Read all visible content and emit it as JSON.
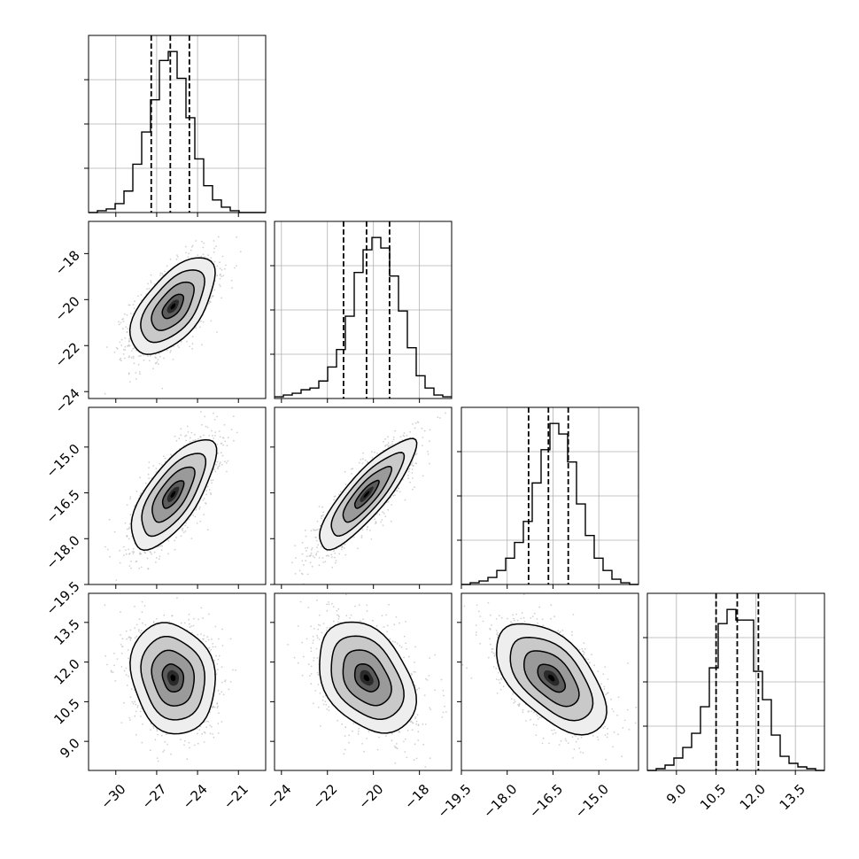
{
  "chart_data": {
    "type": "corner",
    "grid": true,
    "parameters": [
      {
        "index": 0,
        "range": [
          -32.0,
          -19.0
        ],
        "ticks": [
          -30,
          -27,
          -24,
          -21
        ],
        "tick_labels": [
          "−30",
          "−27",
          "−24",
          "−21"
        ],
        "quantiles": [
          -27.4,
          -26.0,
          -24.6
        ]
      },
      {
        "index": 1,
        "range": [
          -24.3,
          -16.6
        ],
        "ticks": [
          -24,
          -22,
          -20,
          -18
        ],
        "tick_labels": [
          "−24",
          "−22",
          "−20",
          "−18"
        ],
        "quantiles": [
          -21.3,
          -20.3,
          -19.3
        ]
      },
      {
        "index": 2,
        "range": [
          -19.5,
          -13.7
        ],
        "ticks": [
          -19.5,
          -18.0,
          -16.5,
          -15.0
        ],
        "tick_labels": [
          "−19.5",
          "−18.0",
          "−16.5",
          "−15.0"
        ],
        "quantiles": [
          -17.3,
          -16.65,
          -16.0
        ]
      },
      {
        "index": 3,
        "range": [
          7.9,
          14.6
        ],
        "ticks": [
          9.0,
          10.5,
          12.0,
          13.5
        ],
        "tick_labels": [
          "9.0",
          "10.5",
          "12.0",
          "13.5"
        ],
        "quantiles": [
          10.5,
          11.3,
          12.1
        ]
      }
    ],
    "histograms": [
      {
        "param": 0,
        "bin_edges": [
          -32.0,
          -31.35,
          -30.7,
          -30.05,
          -29.4,
          -28.75,
          -28.1,
          -27.45,
          -26.8,
          -26.15,
          -25.5,
          -24.85,
          -24.2,
          -23.55,
          -22.9,
          -22.25,
          -21.6,
          -20.95,
          -20.3,
          -19.65,
          -19.0
        ],
        "counts": [
          0,
          1,
          2,
          5,
          12,
          27,
          45,
          63,
          85,
          90,
          75,
          53,
          30,
          15,
          7,
          3,
          1,
          0,
          0,
          0
        ]
      },
      {
        "param": 1,
        "bin_edges": [
          -24.3,
          -23.915,
          -23.53,
          -23.145,
          -22.76,
          -22.375,
          -21.99,
          -21.605,
          -21.22,
          -20.835,
          -20.45,
          -20.065,
          -19.68,
          -19.295,
          -18.91,
          -18.525,
          -18.14,
          -17.755,
          -17.37,
          -16.985,
          -16.6
        ],
        "counts": [
          1,
          2,
          3,
          5,
          6,
          10,
          18,
          28,
          47,
          72,
          85,
          92,
          86,
          70,
          50,
          29,
          13,
          6,
          2,
          1
        ]
      },
      {
        "param": 2,
        "bin_edges": [
          -19.5,
          -19.21,
          -18.92,
          -18.63,
          -18.34,
          -18.05,
          -17.76,
          -17.47,
          -17.18,
          -16.89,
          -16.6,
          -16.31,
          -16.02,
          -15.73,
          -15.44,
          -15.15,
          -14.86,
          -14.57,
          -14.28,
          -13.99,
          -13.7
        ],
        "counts": [
          0,
          1,
          2,
          4,
          8,
          15,
          24,
          36,
          58,
          77,
          92,
          86,
          70,
          46,
          28,
          15,
          8,
          3,
          1,
          0
        ]
      },
      {
        "param": 3,
        "bin_edges": [
          7.9,
          8.235,
          8.57,
          8.905,
          9.24,
          9.575,
          9.91,
          10.245,
          10.58,
          10.915,
          11.25,
          11.585,
          11.92,
          12.255,
          12.59,
          12.925,
          13.26,
          13.595,
          13.93,
          14.265,
          14.6
        ],
        "counts": [
          0,
          1,
          3,
          7,
          13,
          21,
          36,
          58,
          83,
          91,
          85,
          85,
          56,
          40,
          20,
          8,
          4,
          2,
          1,
          0
        ]
      }
    ],
    "pairs": [
      {
        "x_param": 0,
        "y_param": 1,
        "center": [
          -25.8,
          -20.3
        ],
        "spread": [
          1.55,
          1.05
        ],
        "correlation": 0.6
      },
      {
        "x_param": 0,
        "y_param": 2,
        "center": [
          -25.8,
          -16.55
        ],
        "spread": [
          1.55,
          0.9
        ],
        "correlation": 0.7
      },
      {
        "x_param": 1,
        "y_param": 2,
        "center": [
          -20.3,
          -16.55
        ],
        "spread": [
          1.05,
          0.9
        ],
        "correlation": 0.85
      },
      {
        "x_param": 0,
        "y_param": 3,
        "center": [
          -25.8,
          11.4
        ],
        "spread": [
          1.55,
          1.05
        ],
        "correlation": -0.15
      },
      {
        "x_param": 1,
        "y_param": 3,
        "center": [
          -20.3,
          11.4
        ],
        "spread": [
          1.05,
          1.05
        ],
        "correlation": -0.35
      },
      {
        "x_param": 2,
        "y_param": 3,
        "center": [
          -16.55,
          11.4
        ],
        "spread": [
          0.9,
          1.05
        ],
        "correlation": -0.55
      }
    ],
    "contour_levels_sigma": [
      0.5,
      1.0,
      1.5,
      2.0
    ],
    "colors": {
      "line": "#000000",
      "grid": "#b0b0b0",
      "scatter": "#bdbdbd",
      "fill_dark": "#000000",
      "fill_light": "#f2f2f2"
    }
  }
}
